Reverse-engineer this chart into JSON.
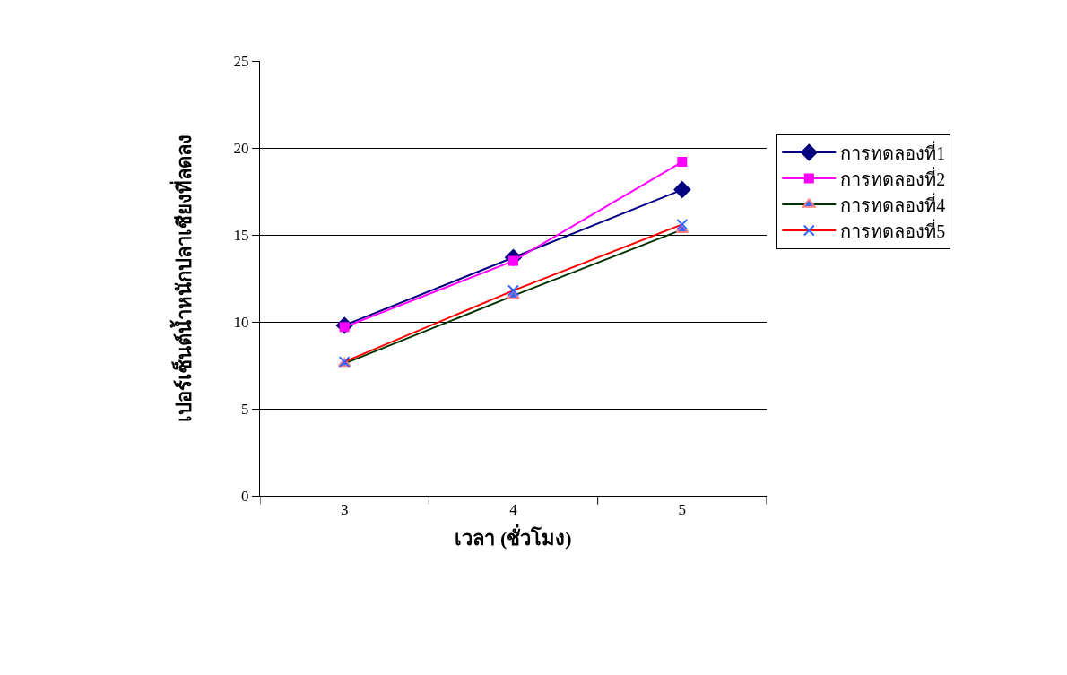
{
  "chart_data": {
    "type": "line",
    "xlabel": "เวลา (ชั่วโมง)",
    "ylabel": "เปอร์เซ็นต์น้ำหนักปลาเชียงที่ลดลง",
    "categories": [
      "3",
      "4",
      "5"
    ],
    "series": [
      {
        "name": "การทดลองที่1",
        "color": "#000080",
        "marker": "diamond",
        "values": [
          9.8,
          13.7,
          17.6
        ]
      },
      {
        "name": "การทดลองที่2",
        "color": "#ff00ff",
        "marker": "square",
        "values": [
          9.7,
          13.5,
          19.2
        ]
      },
      {
        "name": "การทดลองที่4",
        "color": "#003300",
        "marker": "triangle",
        "values": [
          7.6,
          11.5,
          15.3
        ]
      },
      {
        "name": "การทดลองที่5",
        "color": "#ff0000",
        "marker": "cross",
        "values": [
          7.7,
          11.8,
          15.6
        ]
      }
    ],
    "ylim": [
      0,
      25
    ],
    "yticks": [
      0,
      5,
      10,
      15,
      20,
      25
    ],
    "grid": "y",
    "legend": "right"
  }
}
